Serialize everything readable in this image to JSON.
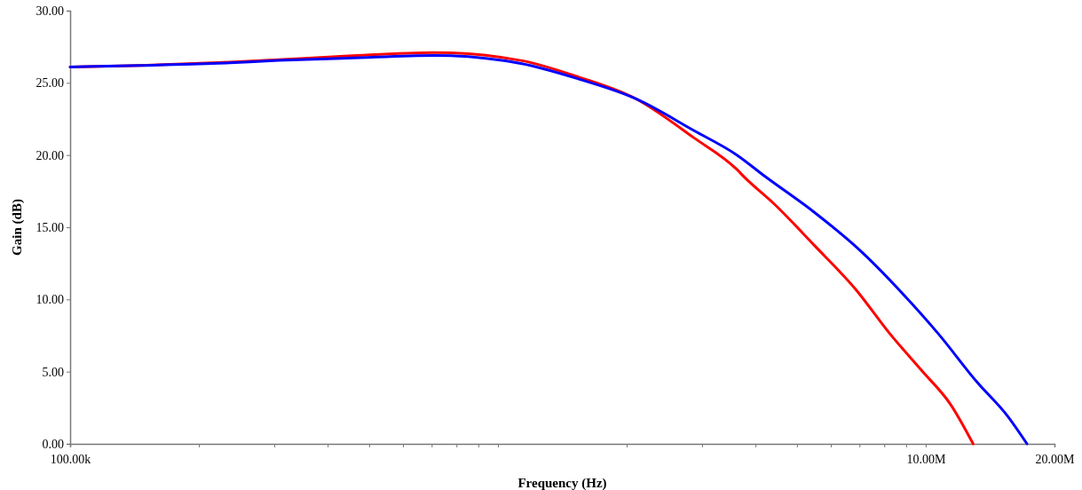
{
  "chart_data": {
    "type": "line",
    "xlabel": "Frequency (Hz)",
    "ylabel": "Gain (dB)",
    "log": "x",
    "xlim": [
      100000,
      20000000
    ],
    "ylim": [
      0,
      30
    ],
    "xticks": [
      {
        "value": 100000,
        "label": "100.00k"
      },
      {
        "value": 200000,
        "label": null
      },
      {
        "value": 300000,
        "label": null
      },
      {
        "value": 400000,
        "label": null
      },
      {
        "value": 500000,
        "label": null
      },
      {
        "value": 600000,
        "label": null
      },
      {
        "value": 700000,
        "label": null
      },
      {
        "value": 800000,
        "label": null
      },
      {
        "value": 900000,
        "label": null
      },
      {
        "value": 1000000,
        "label": null
      },
      {
        "value": 2000000,
        "label": null
      },
      {
        "value": 3000000,
        "label": null
      },
      {
        "value": 4000000,
        "label": null
      },
      {
        "value": 5000000,
        "label": null
      },
      {
        "value": 6000000,
        "label": null
      },
      {
        "value": 7000000,
        "label": null
      },
      {
        "value": 8000000,
        "label": null
      },
      {
        "value": 9000000,
        "label": null
      },
      {
        "value": 10000000,
        "label": "10.00M"
      },
      {
        "value": 20000000,
        "label": "20.00M"
      }
    ],
    "yticks": [
      {
        "value": 0,
        "label": "0.00"
      },
      {
        "value": 5,
        "label": "5.00"
      },
      {
        "value": 10,
        "label": "10.00"
      },
      {
        "value": 15,
        "label": "15.00"
      },
      {
        "value": 20,
        "label": "20.00"
      },
      {
        "value": 25,
        "label": "25.00"
      },
      {
        "value": 30,
        "label": "30.00"
      }
    ],
    "grid": false,
    "legend": false,
    "marker": "none",
    "line_style": "solid",
    "series": [
      {
        "color": "#ff0000",
        "x": [
          100000,
          146000,
          222000,
          307000,
          446000,
          710000,
          1131000,
          1546000,
          2100000,
          2870000,
          3620000,
          3760000,
          4430000,
          5510000,
          6860000,
          8260000,
          9770000,
          11450000,
          12910000
        ],
        "values": [
          26.1,
          26.2,
          26.4,
          26.6,
          26.86,
          27.1,
          26.55,
          25.4,
          23.9,
          21.2,
          19.0,
          18.5,
          16.6,
          13.7,
          10.7,
          7.6,
          5.1,
          2.7,
          0
        ]
      },
      {
        "color": "#0000ff",
        "x": [
          100000,
          146000,
          222000,
          307000,
          446000,
          710000,
          1131000,
          1546000,
          2100000,
          2870000,
          3620000,
          4220000,
          5510000,
          6960000,
          8770000,
          10720000,
          13160000,
          15560000,
          17250000
        ],
        "values": [
          26.1,
          26.2,
          26.35,
          26.55,
          26.71,
          26.9,
          26.34,
          25.26,
          23.9,
          21.7,
          20.0,
          18.5,
          16.0,
          13.5,
          10.5,
          7.6,
          4.3,
          1.9,
          0
        ]
      }
    ]
  }
}
